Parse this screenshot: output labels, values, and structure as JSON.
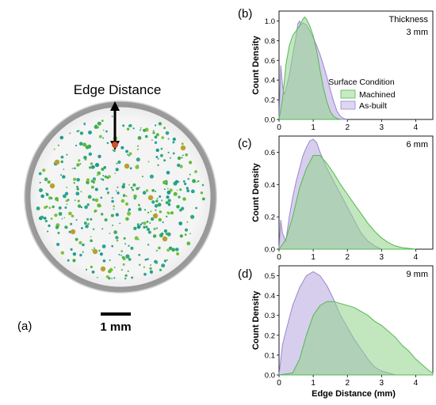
{
  "left_panel": {
    "label": "(a)",
    "edge_label": "Edge Distance",
    "scale_label": "1 mm"
  },
  "legend": {
    "title": "Surface Condition",
    "entries": [
      "Machined",
      "As-built"
    ]
  },
  "colors": {
    "machined": "#8fd48a",
    "machined_stroke": "#54b84f",
    "asbuilt": "#c9bde8",
    "asbuilt_stroke": "#9a86cc"
  },
  "chart_data": [
    {
      "type": "area",
      "panel_label": "(b)",
      "title": "Thickness",
      "annotation": "3 mm",
      "xlabel": "",
      "ylabel": "Count Density",
      "xlim": [
        0,
        4.5
      ],
      "ylim": [
        0,
        1.1
      ],
      "xticks": [
        0,
        1,
        2,
        3,
        4
      ],
      "yticks": [
        0,
        0.2,
        0.4,
        0.6,
        0.8,
        1.0
      ],
      "ytick_labels": [
        "0.0",
        "0.2",
        "0.4",
        "0.6",
        "0.8",
        "1.0"
      ],
      "series": [
        {
          "name": "As-built",
          "x": [
            0,
            0.05,
            0.1,
            0.15,
            0.2,
            0.3,
            0.4,
            0.5,
            0.55,
            0.6,
            0.65,
            0.7,
            0.8,
            0.9,
            1.0,
            1.1,
            1.2,
            1.3,
            1.4,
            1.5,
            1.6,
            1.7,
            1.8,
            1.9,
            2.0
          ],
          "y": [
            0,
            0.55,
            0.35,
            0.25,
            0.3,
            0.45,
            0.65,
            0.85,
            0.97,
            1.0,
            0.96,
            0.98,
            0.96,
            0.9,
            0.83,
            0.75,
            0.66,
            0.55,
            0.43,
            0.3,
            0.18,
            0.08,
            0.03,
            0.01,
            0
          ]
        },
        {
          "name": "Machined",
          "x": [
            0,
            0.1,
            0.2,
            0.3,
            0.4,
            0.5,
            0.6,
            0.7,
            0.75,
            0.8,
            0.9,
            1.0,
            1.1,
            1.2,
            1.3,
            1.4,
            1.5,
            1.6,
            1.7,
            1.8
          ],
          "y": [
            0,
            0.2,
            0.55,
            0.75,
            0.85,
            0.9,
            0.95,
            1.02,
            1.04,
            1.02,
            0.95,
            0.85,
            0.7,
            0.5,
            0.32,
            0.18,
            0.08,
            0.03,
            0.01,
            0
          ]
        }
      ]
    },
    {
      "type": "area",
      "panel_label": "(c)",
      "title": "",
      "annotation": "6 mm",
      "xlabel": "",
      "ylabel": "Count Density",
      "xlim": [
        0,
        4.5
      ],
      "ylim": [
        0,
        0.7
      ],
      "xticks": [
        0,
        1,
        2,
        3,
        4
      ],
      "yticks": [
        0,
        0.2,
        0.4,
        0.6
      ],
      "ytick_labels": [
        "0.0",
        "0.2",
        "0.4",
        "0.6"
      ],
      "series": [
        {
          "name": "As-built",
          "x": [
            0,
            0.05,
            0.1,
            0.2,
            0.3,
            0.4,
            0.5,
            0.6,
            0.7,
            0.8,
            0.9,
            1.0,
            1.1,
            1.2,
            1.3,
            1.4,
            1.6,
            1.8,
            2.0,
            2.2,
            2.4,
            2.6,
            2.8,
            2.9,
            3.0
          ],
          "y": [
            0,
            0.18,
            0.1,
            0.05,
            0.2,
            0.32,
            0.42,
            0.5,
            0.58,
            0.63,
            0.67,
            0.68,
            0.66,
            0.6,
            0.55,
            0.5,
            0.42,
            0.34,
            0.26,
            0.18,
            0.1,
            0.05,
            0.02,
            0.01,
            0
          ]
        },
        {
          "name": "Machined",
          "x": [
            0,
            0.2,
            0.4,
            0.6,
            0.8,
            1.0,
            1.2,
            1.4,
            1.6,
            1.8,
            2.0,
            2.2,
            2.4,
            2.6,
            2.8,
            3.0,
            3.2,
            3.4,
            3.6,
            3.8,
            4.0
          ],
          "y": [
            0,
            0.06,
            0.2,
            0.38,
            0.5,
            0.58,
            0.58,
            0.53,
            0.47,
            0.4,
            0.34,
            0.28,
            0.22,
            0.16,
            0.11,
            0.07,
            0.04,
            0.02,
            0.01,
            0.005,
            0
          ]
        }
      ]
    },
    {
      "type": "area",
      "panel_label": "(d)",
      "title": "",
      "annotation": "9 mm",
      "xlabel": "Edge Distance (mm)",
      "ylabel": "Count Density",
      "xlim": [
        0,
        4.5
      ],
      "ylim": [
        0,
        0.55
      ],
      "xticks": [
        0,
        1,
        2,
        3,
        4
      ],
      "yticks": [
        0,
        0.1,
        0.2,
        0.3,
        0.4,
        0.5
      ],
      "ytick_labels": [
        "0.0",
        "0.1",
        "0.2",
        "0.3",
        "0.4",
        "0.5"
      ],
      "series": [
        {
          "name": "As-built",
          "x": [
            0,
            0.1,
            0.2,
            0.4,
            0.6,
            0.8,
            1.0,
            1.2,
            1.4,
            1.6,
            1.8,
            2.0,
            2.2,
            2.4,
            2.6,
            2.8,
            3.0,
            3.2,
            3.4
          ],
          "y": [
            0,
            0.15,
            0.22,
            0.35,
            0.44,
            0.5,
            0.52,
            0.5,
            0.45,
            0.38,
            0.3,
            0.24,
            0.18,
            0.13,
            0.08,
            0.04,
            0.02,
            0.01,
            0
          ]
        },
        {
          "name": "Machined",
          "x": [
            0,
            0.4,
            0.6,
            0.8,
            1.0,
            1.2,
            1.4,
            1.6,
            1.8,
            2.0,
            2.2,
            2.4,
            2.6,
            2.8,
            3.0,
            3.2,
            3.4,
            3.6,
            3.8,
            4.0,
            4.2,
            4.4,
            4.5
          ],
          "y": [
            0,
            0.01,
            0.08,
            0.2,
            0.3,
            0.35,
            0.37,
            0.37,
            0.36,
            0.35,
            0.34,
            0.32,
            0.3,
            0.27,
            0.25,
            0.22,
            0.19,
            0.15,
            0.12,
            0.08,
            0.05,
            0.02,
            0.01
          ]
        }
      ]
    }
  ]
}
